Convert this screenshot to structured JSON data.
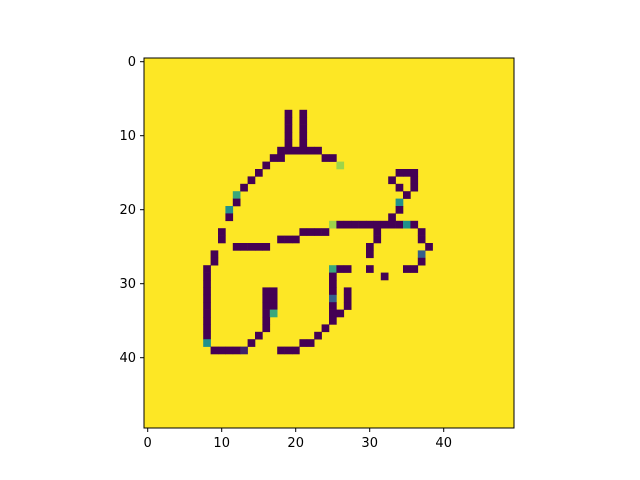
{
  "chart_data": {
    "type": "heatmap",
    "title": "",
    "xlabel": "",
    "ylabel": "",
    "grid": false,
    "legend": "none",
    "colormap": "viridis",
    "shape": [
      50,
      50
    ],
    "xlim": [
      -0.5,
      49.5
    ],
    "ylim": [
      49.5,
      -0.5
    ],
    "xticks": [
      0,
      10,
      20,
      30,
      40
    ],
    "xtick_labels": [
      "0",
      "10",
      "20",
      "30",
      "40"
    ],
    "yticks": [
      0,
      10,
      20,
      30,
      40
    ],
    "ytick_labels": [
      "0",
      "10",
      "20",
      "30",
      "40"
    ],
    "value_range": [
      0,
      1
    ],
    "background_value": 1.0,
    "colors": {
      "high": "#fde725",
      "low": "#440154",
      "mid_teal": "#21918c",
      "mid_green": "#5ec962",
      "light_green": "#b5de2b",
      "blue": "#3b528b"
    },
    "pixels": [
      [
        19,
        7,
        0
      ],
      [
        21,
        7,
        0
      ],
      [
        19,
        8,
        0
      ],
      [
        21,
        8,
        0
      ],
      [
        19,
        9,
        0
      ],
      [
        21,
        9,
        0
      ],
      [
        19,
        10,
        0
      ],
      [
        21,
        10,
        0
      ],
      [
        19,
        11,
        0
      ],
      [
        21,
        11,
        0
      ],
      [
        18,
        12,
        0
      ],
      [
        19,
        12,
        0
      ],
      [
        20,
        12,
        0
      ],
      [
        21,
        12,
        0
      ],
      [
        22,
        12,
        0
      ],
      [
        23,
        12,
        0
      ],
      [
        17,
        13,
        0
      ],
      [
        18,
        13,
        0
      ],
      [
        24,
        13,
        0
      ],
      [
        25,
        13,
        0
      ],
      [
        16,
        14,
        0
      ],
      [
        26,
        14,
        0.85
      ],
      [
        15,
        15,
        0
      ],
      [
        34,
        15,
        0
      ],
      [
        35,
        15,
        0
      ],
      [
        36,
        15,
        0
      ],
      [
        14,
        16,
        0
      ],
      [
        33,
        16,
        0
      ],
      [
        36,
        16,
        0
      ],
      [
        13,
        17,
        0
      ],
      [
        34,
        17,
        0
      ],
      [
        36,
        17,
        0
      ],
      [
        12,
        18,
        0.6
      ],
      [
        35,
        18,
        0
      ],
      [
        12,
        19,
        0
      ],
      [
        34,
        19,
        0.5
      ],
      [
        11,
        20,
        0.5
      ],
      [
        34,
        20,
        0
      ],
      [
        11,
        21,
        0
      ],
      [
        33,
        21,
        0
      ],
      [
        25,
        22,
        0.85
      ],
      [
        26,
        22,
        0
      ],
      [
        27,
        22,
        0
      ],
      [
        28,
        22,
        0
      ],
      [
        29,
        22,
        0
      ],
      [
        30,
        22,
        0
      ],
      [
        31,
        22,
        0
      ],
      [
        32,
        22,
        0
      ],
      [
        33,
        22,
        0
      ],
      [
        34,
        22,
        0
      ],
      [
        35,
        22,
        0.5
      ],
      [
        36,
        22,
        0
      ],
      [
        10,
        23,
        0
      ],
      [
        21,
        23,
        0
      ],
      [
        22,
        23,
        0
      ],
      [
        23,
        23,
        0
      ],
      [
        24,
        23,
        0
      ],
      [
        31,
        23,
        0
      ],
      [
        37,
        23,
        0
      ],
      [
        10,
        24,
        0
      ],
      [
        18,
        24,
        0
      ],
      [
        19,
        24,
        0
      ],
      [
        20,
        24,
        0
      ],
      [
        31,
        24,
        0
      ],
      [
        37,
        24,
        0
      ],
      [
        12,
        25,
        0
      ],
      [
        13,
        25,
        0
      ],
      [
        14,
        25,
        0
      ],
      [
        15,
        25,
        0
      ],
      [
        16,
        25,
        0
      ],
      [
        30,
        25,
        0
      ],
      [
        38,
        25,
        0
      ],
      [
        9,
        26,
        0
      ],
      [
        30,
        26,
        0
      ],
      [
        37,
        26,
        0.3
      ],
      [
        9,
        27,
        0
      ],
      [
        37,
        27,
        0
      ],
      [
        8,
        28,
        0
      ],
      [
        25,
        28,
        0.6
      ],
      [
        26,
        28,
        0
      ],
      [
        27,
        28,
        0
      ],
      [
        30,
        28,
        0
      ],
      [
        35,
        28,
        0
      ],
      [
        36,
        28,
        0
      ],
      [
        8,
        29,
        0
      ],
      [
        25,
        29,
        0
      ],
      [
        32,
        29,
        0
      ],
      [
        8,
        30,
        0
      ],
      [
        25,
        30,
        0
      ],
      [
        8,
        31,
        0
      ],
      [
        16,
        31,
        0
      ],
      [
        17,
        31,
        0
      ],
      [
        25,
        31,
        0
      ],
      [
        27,
        31,
        0
      ],
      [
        8,
        32,
        0
      ],
      [
        16,
        32,
        0
      ],
      [
        17,
        32,
        0
      ],
      [
        25,
        32,
        0.3
      ],
      [
        27,
        32,
        0
      ],
      [
        8,
        33,
        0
      ],
      [
        16,
        33,
        0
      ],
      [
        17,
        33,
        0
      ],
      [
        25,
        33,
        0
      ],
      [
        27,
        33,
        0
      ],
      [
        8,
        34,
        0
      ],
      [
        16,
        34,
        0
      ],
      [
        17,
        34,
        0.6
      ],
      [
        25,
        34,
        0
      ],
      [
        26,
        34,
        0
      ],
      [
        8,
        35,
        0
      ],
      [
        16,
        35,
        0
      ],
      [
        25,
        35,
        0
      ],
      [
        8,
        36,
        0
      ],
      [
        16,
        36,
        0
      ],
      [
        24,
        36,
        0
      ],
      [
        8,
        37,
        0
      ],
      [
        15,
        37,
        0
      ],
      [
        23,
        37,
        0
      ],
      [
        8,
        38,
        0.5
      ],
      [
        14,
        38,
        0
      ],
      [
        21,
        38,
        0
      ],
      [
        22,
        38,
        0
      ],
      [
        9,
        39,
        0
      ],
      [
        10,
        39,
        0
      ],
      [
        11,
        39,
        0
      ],
      [
        12,
        39,
        0
      ],
      [
        13,
        39,
        0.1
      ],
      [
        18,
        39,
        0
      ],
      [
        19,
        39,
        0
      ],
      [
        20,
        39,
        0
      ]
    ]
  }
}
